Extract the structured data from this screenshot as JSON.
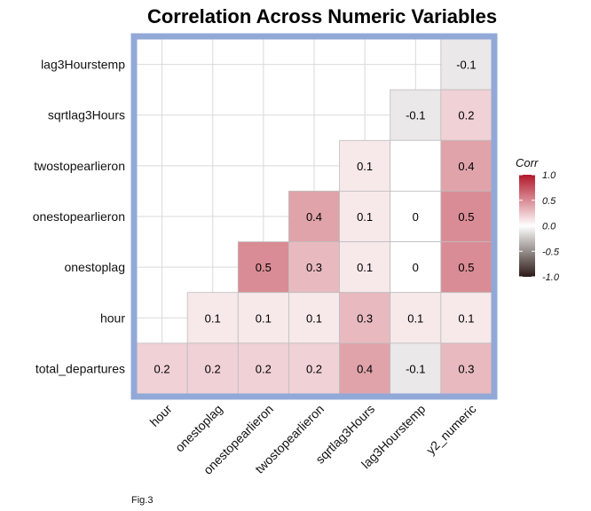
{
  "chart_data": {
    "type": "heatmap",
    "title": "Correlation Across Numeric Variables",
    "caption": "Fig.3",
    "x_categories": [
      "hour",
      "onestoplag",
      "onestopearlieron",
      "twostopearlieron",
      "sqrtlag3Hours",
      "lag3Hourstemp",
      "y2_numeric"
    ],
    "y_categories": [
      "lag3Hourstemp",
      "sqrtlag3Hours",
      "twostopearlieron",
      "onestopearlieron",
      "onestoplag",
      "hour",
      "total_departures"
    ],
    "cells": [
      {
        "x": "y2_numeric",
        "y": "lag3Hourstemp",
        "value": -0.1,
        "label": "-0.1"
      },
      {
        "x": "lag3Hourstemp",
        "y": "sqrtlag3Hours",
        "value": -0.1,
        "label": "-0.1"
      },
      {
        "x": "y2_numeric",
        "y": "sqrtlag3Hours",
        "value": 0.2,
        "label": "0.2"
      },
      {
        "x": "sqrtlag3Hours",
        "y": "twostopearlieron",
        "value": 0.1,
        "label": "0.1"
      },
      {
        "x": "lag3Hourstemp",
        "y": "twostopearlieron",
        "value": 0.0,
        "label": ""
      },
      {
        "x": "y2_numeric",
        "y": "twostopearlieron",
        "value": 0.4,
        "label": "0.4"
      },
      {
        "x": "twostopearlieron",
        "y": "onestopearlieron",
        "value": 0.4,
        "label": "0.4"
      },
      {
        "x": "sqrtlag3Hours",
        "y": "onestopearlieron",
        "value": 0.1,
        "label": "0.1"
      },
      {
        "x": "lag3Hourstemp",
        "y": "onestopearlieron",
        "value": 0.0,
        "label": "0"
      },
      {
        "x": "y2_numeric",
        "y": "onestopearlieron",
        "value": 0.5,
        "label": "0.5"
      },
      {
        "x": "onestopearlieron",
        "y": "onestoplag",
        "value": 0.5,
        "label": "0.5"
      },
      {
        "x": "twostopearlieron",
        "y": "onestoplag",
        "value": 0.3,
        "label": "0.3"
      },
      {
        "x": "sqrtlag3Hours",
        "y": "onestoplag",
        "value": 0.1,
        "label": "0.1"
      },
      {
        "x": "lag3Hourstemp",
        "y": "onestoplag",
        "value": 0.0,
        "label": "0"
      },
      {
        "x": "y2_numeric",
        "y": "onestoplag",
        "value": 0.5,
        "label": "0.5"
      },
      {
        "x": "onestoplag",
        "y": "hour",
        "value": 0.1,
        "label": "0.1"
      },
      {
        "x": "onestopearlieron",
        "y": "hour",
        "value": 0.1,
        "label": "0.1"
      },
      {
        "x": "twostopearlieron",
        "y": "hour",
        "value": 0.1,
        "label": "0.1"
      },
      {
        "x": "sqrtlag3Hours",
        "y": "hour",
        "value": 0.3,
        "label": "0.3"
      },
      {
        "x": "lag3Hourstemp",
        "y": "hour",
        "value": 0.1,
        "label": "0.1"
      },
      {
        "x": "y2_numeric",
        "y": "hour",
        "value": 0.1,
        "label": "0.1"
      },
      {
        "x": "hour",
        "y": "total_departures",
        "value": 0.2,
        "label": "0.2"
      },
      {
        "x": "onestoplag",
        "y": "total_departures",
        "value": 0.2,
        "label": "0.2"
      },
      {
        "x": "onestopearlieron",
        "y": "total_departures",
        "value": 0.2,
        "label": "0.2"
      },
      {
        "x": "twostopearlieron",
        "y": "total_departures",
        "value": 0.2,
        "label": "0.2"
      },
      {
        "x": "sqrtlag3Hours",
        "y": "total_departures",
        "value": 0.4,
        "label": "0.4"
      },
      {
        "x": "lag3Hourstemp",
        "y": "total_departures",
        "value": -0.1,
        "label": "-0.1"
      },
      {
        "x": "y2_numeric",
        "y": "total_departures",
        "value": 0.3,
        "label": "0.3"
      }
    ],
    "legend": {
      "title": "Corr",
      "ticks": [
        "1.0",
        "0.5",
        "0.0",
        "-0.5",
        "-1.0"
      ],
      "tick_values": [
        1.0,
        0.5,
        0.0,
        -0.5,
        -1.0
      ],
      "position": "right",
      "colors": {
        "high": "#b2182b",
        "mid": "#ffffff",
        "low": "#2b1a17"
      }
    },
    "value_range": [
      -1,
      1
    ],
    "grid": true,
    "colors": {
      "panel_border": "#92a9d8",
      "gridline": "#d9d9d9",
      "cell_border": "#bdbdbd"
    }
  }
}
